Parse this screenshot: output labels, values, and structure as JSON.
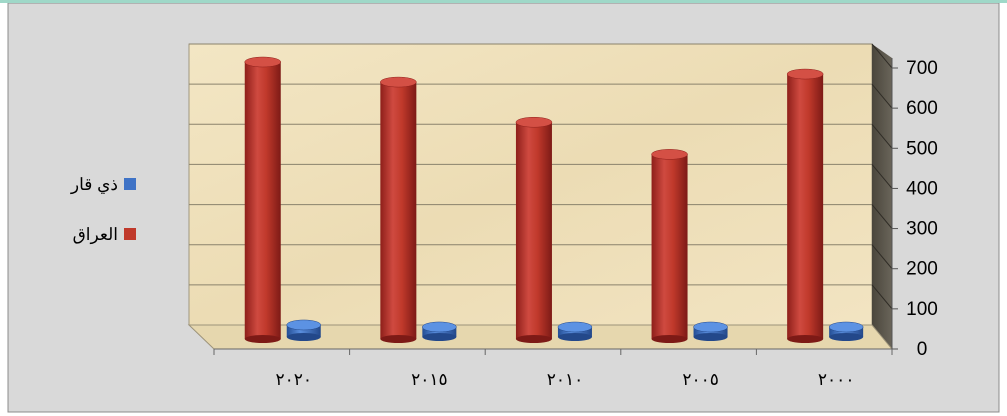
{
  "chart_data": {
    "type": "bar",
    "categories": [
      "٢٠٢٠",
      "٢٠١٥",
      "٢٠١٠",
      "٢٠٠٥",
      "٢٠٠٠"
    ],
    "series": [
      {
        "name": "العراق",
        "color": "#c0392b",
        "values": [
          690,
          640,
          540,
          460,
          660
        ]
      },
      {
        "name": "ذي قار",
        "color": "#3f73c6",
        "values": [
          30,
          25,
          18,
          18,
          20
        ]
      }
    ],
    "ylim": [
      0,
      700
    ],
    "yticks": [
      "0",
      "100",
      "200",
      "300",
      "400",
      "500",
      "600",
      "700"
    ],
    "legend_position": "left",
    "grid": true,
    "style": "3d-column"
  }
}
